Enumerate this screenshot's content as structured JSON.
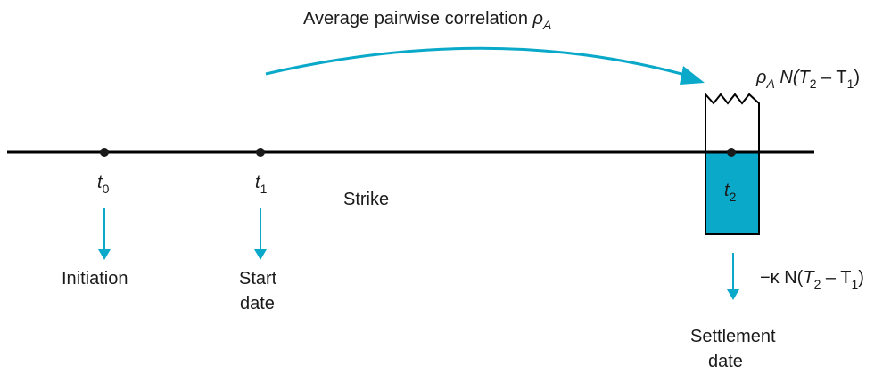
{
  "colors": {
    "accent": "#0aa9c9",
    "line": "#000000",
    "text": "#1a1a1a"
  },
  "arc_label": {
    "text": "Average pairwise correlation ",
    "rho": "ρ",
    "sub": "A"
  },
  "upper_label": {
    "rho": "ρ",
    "rho_sub": "A",
    "n_open": " N(",
    "t2": "T",
    "t2_sub": "2",
    "minus": " – T",
    "t1_sub": "1",
    "close": ")"
  },
  "lower_label": {
    "kappa": "−κ N(",
    "t2": "T",
    "t2_sub": "2",
    "minus": " – T",
    "t1_sub": "1",
    "close": ")"
  },
  "points": {
    "t0": {
      "name": "t",
      "sub": "0",
      "caption": [
        "Initiation"
      ]
    },
    "t1": {
      "name": "t",
      "sub": "1",
      "caption": [
        "Start",
        "date"
      ]
    },
    "t2": {
      "name": "t",
      "sub": "2",
      "caption": [
        "Settlement",
        "date"
      ]
    }
  },
  "strike_label": "Strike"
}
